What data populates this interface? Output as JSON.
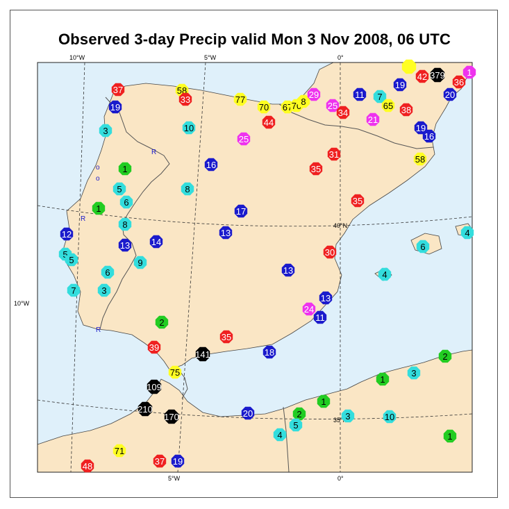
{
  "title": "Observed 3-day Precip valid Mon 3 Nov 2008, 06 UTC",
  "grid_labels": [
    {
      "text": "10°W",
      "pos": "top"
    },
    {
      "text": "5°W",
      "pos": "top"
    },
    {
      "text": "0°",
      "pos": "top"
    },
    {
      "text": "10°W",
      "pos": "left"
    },
    {
      "text": "40°N",
      "pos": "inner"
    },
    {
      "text": "35°N",
      "pos": "inner"
    },
    {
      "text": "5°W",
      "pos": "bottom"
    },
    {
      "text": "0°",
      "pos": "bottom"
    }
  ],
  "river_marks": [
    "R",
    "R",
    "R",
    "R",
    "o",
    "o"
  ],
  "colors": {
    "sea": "#dff0fa",
    "land": "#fae6c5",
    "black": "#000000",
    "red": "#ef2020",
    "blue": "#1a1acc",
    "cyan": "#33dddd",
    "green": "#22cc22",
    "yellow": "#ffff22",
    "magenta": "#ee33ee"
  },
  "stations": [
    {
      "v": "37",
      "c": "red"
    },
    {
      "v": "19",
      "c": "blue"
    },
    {
      "v": "58",
      "c": "yellow"
    },
    {
      "v": "33",
      "c": "red"
    },
    {
      "v": "77",
      "c": "yellow"
    },
    {
      "v": "70",
      "c": "yellow"
    },
    {
      "v": "67",
      "c": "yellow"
    },
    {
      "v": "70",
      "c": "yellow"
    },
    {
      "v": "8",
      "c": "yellow"
    },
    {
      "v": "29",
      "c": "magenta"
    },
    {
      "v": "25",
      "c": "magenta"
    },
    {
      "v": "34",
      "c": "red"
    },
    {
      "v": "11",
      "c": "blue"
    },
    {
      "v": "7",
      "c": "cyan"
    },
    {
      "v": "65",
      "c": "yellow"
    },
    {
      "v": "19",
      "c": "blue"
    },
    {
      "v": "42",
      "c": "red"
    },
    {
      "v": "379",
      "c": "black"
    },
    {
      "v": "",
      "c": "yellow"
    },
    {
      "v": "36",
      "c": "red"
    },
    {
      "v": "20",
      "c": "blue"
    },
    {
      "v": "1",
      "c": "magenta"
    },
    {
      "v": "38",
      "c": "red"
    },
    {
      "v": "21",
      "c": "magenta"
    },
    {
      "v": "19",
      "c": "blue"
    },
    {
      "v": "16",
      "c": "blue"
    },
    {
      "v": "3",
      "c": "cyan"
    },
    {
      "v": "10",
      "c": "cyan"
    },
    {
      "v": "44",
      "c": "red"
    },
    {
      "v": "25",
      "c": "magenta"
    },
    {
      "v": "31",
      "c": "red"
    },
    {
      "v": "35",
      "c": "red"
    },
    {
      "v": "58",
      "c": "yellow"
    },
    {
      "v": "16",
      "c": "blue"
    },
    {
      "v": "1",
      "c": "green"
    },
    {
      "v": "5",
      "c": "cyan"
    },
    {
      "v": "6",
      "c": "cyan"
    },
    {
      "v": "8",
      "c": "cyan"
    },
    {
      "v": "1",
      "c": "green"
    },
    {
      "v": "35",
      "c": "red"
    },
    {
      "v": "17",
      "c": "blue"
    },
    {
      "v": "12",
      "c": "blue"
    },
    {
      "v": "8",
      "c": "cyan"
    },
    {
      "v": "13",
      "c": "blue"
    },
    {
      "v": "14",
      "c": "blue"
    },
    {
      "v": "13",
      "c": "blue"
    },
    {
      "v": "4",
      "c": "cyan"
    },
    {
      "v": "6",
      "c": "cyan"
    },
    {
      "v": "5",
      "c": "cyan"
    },
    {
      "v": "5",
      "c": "cyan"
    },
    {
      "v": "9",
      "c": "cyan"
    },
    {
      "v": "30",
      "c": "red"
    },
    {
      "v": "6",
      "c": "cyan"
    },
    {
      "v": "13",
      "c": "blue"
    },
    {
      "v": "4",
      "c": "cyan"
    },
    {
      "v": "7",
      "c": "cyan"
    },
    {
      "v": "3",
      "c": "cyan"
    },
    {
      "v": "13",
      "c": "blue"
    },
    {
      "v": "24",
      "c": "magenta"
    },
    {
      "v": "11",
      "c": "blue"
    },
    {
      "v": "2",
      "c": "green"
    },
    {
      "v": "39",
      "c": "red"
    },
    {
      "v": "141",
      "c": "black"
    },
    {
      "v": "35",
      "c": "red"
    },
    {
      "v": "18",
      "c": "blue"
    },
    {
      "v": "2",
      "c": "green"
    },
    {
      "v": "75",
      "c": "yellow"
    },
    {
      "v": "1",
      "c": "green"
    },
    {
      "v": "3",
      "c": "cyan"
    },
    {
      "v": "109",
      "c": "black"
    },
    {
      "v": "210",
      "c": "black"
    },
    {
      "v": "170",
      "c": "black"
    },
    {
      "v": "20",
      "c": "blue"
    },
    {
      "v": "2",
      "c": "green"
    },
    {
      "v": "1",
      "c": "green"
    },
    {
      "v": "3",
      "c": "cyan"
    },
    {
      "v": "10",
      "c": "cyan"
    },
    {
      "v": "5",
      "c": "cyan"
    },
    {
      "v": "4",
      "c": "cyan"
    },
    {
      "v": "1",
      "c": "green"
    },
    {
      "v": "71",
      "c": "yellow"
    },
    {
      "v": "37",
      "c": "red"
    },
    {
      "v": "19",
      "c": "blue"
    },
    {
      "v": "48",
      "c": "red"
    }
  ]
}
